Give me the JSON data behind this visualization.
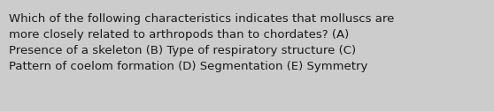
{
  "text": "Which of the following characteristics indicates that molluscs are\nmore closely related to arthropods than to chordates? (A)\nPresence of a skeleton (B) Type of respiratory structure (C)\nPattern of coelom formation (D) Segmentation (E) Symmetry",
  "background_color": "#cccccc",
  "text_color": "#1a1a1a",
  "font_size": 9.5,
  "font_family": "DejaVu Sans",
  "fig_width": 5.58,
  "fig_height": 1.26,
  "dpi": 100
}
